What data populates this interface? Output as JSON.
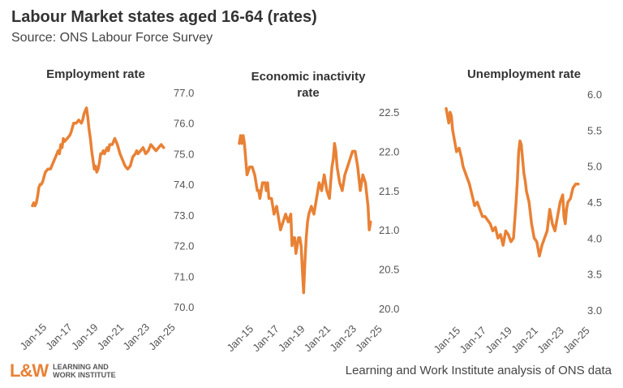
{
  "header": {
    "title": "Labour Market states aged 16-64 (rates)",
    "subtitle": "Source: ONS Labour Force Survey"
  },
  "footer": {
    "logo_mark": "L&W",
    "logo_line1": "LEARNING AND",
    "logo_line2": "WORK INSTITUTE",
    "credit": "Learning and Work Institute analysis of ONS data"
  },
  "colors": {
    "line": "#e98135",
    "text": "#333333"
  },
  "chart_data": [
    {
      "type": "line",
      "title_lines": [
        "Employment rate"
      ],
      "x_ticks": [
        "Jan-15",
        "Jan-17",
        "Jan-19",
        "Jan-21",
        "Jan-23",
        "Jan-25"
      ],
      "y_ticks": [
        "77.0",
        "76.0",
        "75.0",
        "74.0",
        "73.0",
        "72.0",
        "71.0",
        "70.0"
      ],
      "ylim": [
        70,
        77
      ],
      "xlim": [
        2015.0,
        2025.4
      ],
      "grid": false,
      "series": [
        {
          "x": [
            2015.0,
            2015.1,
            2015.2,
            2015.3,
            2015.4,
            2015.5,
            2015.6,
            2015.7,
            2015.8,
            2016.0,
            2016.2,
            2016.4,
            2016.6,
            2016.8,
            2017.0,
            2017.1,
            2017.2,
            2017.3,
            2017.4,
            2017.5,
            2017.7,
            2017.9,
            2018.0,
            2018.2,
            2018.4,
            2018.6,
            2018.8,
            2018.9,
            2019.0,
            2019.1,
            2019.2,
            2019.3,
            2019.4,
            2019.5,
            2019.6,
            2019.7,
            2019.8,
            2019.9,
            2020.0,
            2020.1,
            2020.2,
            2020.3,
            2020.4,
            2020.5,
            2020.6,
            2020.7,
            2020.8,
            2020.9,
            2021.0,
            2021.2,
            2021.4,
            2021.6,
            2021.8,
            2022.0,
            2022.2,
            2022.4,
            2022.6,
            2022.8,
            2023.0,
            2023.1,
            2023.2,
            2023.4,
            2023.6,
            2023.8,
            2024.0,
            2024.2,
            2024.4,
            2024.6,
            2024.8,
            2025.0,
            2025.2
          ],
          "y": [
            73.3,
            73.4,
            73.3,
            73.4,
            73.6,
            73.9,
            74.0,
            74.0,
            74.1,
            74.4,
            74.5,
            74.5,
            74.7,
            74.9,
            75.1,
            75.0,
            75.3,
            75.2,
            75.5,
            75.4,
            75.5,
            75.6,
            75.7,
            76.0,
            76.0,
            76.1,
            76.0,
            76.1,
            76.3,
            76.4,
            76.5,
            76.2,
            75.8,
            75.5,
            75.1,
            74.8,
            74.5,
            74.6,
            74.4,
            74.5,
            74.7,
            75.0,
            75.0,
            75.1,
            75.0,
            75.1,
            75.2,
            75.1,
            75.3,
            75.3,
            75.5,
            75.3,
            75.0,
            74.8,
            74.6,
            74.5,
            74.6,
            74.9,
            75.0,
            75.1,
            75.0,
            75.1,
            75.2,
            75.0,
            75.1,
            75.3,
            75.2,
            75.1,
            75.2,
            75.3,
            75.2
          ]
        }
      ]
    },
    {
      "type": "line",
      "title_lines": [
        "Economic inactivity",
        "rate"
      ],
      "x_ticks": [
        "Jan-15",
        "Jan-17",
        "Jan-19",
        "Jan-21",
        "Jan-23",
        "Jan-25"
      ],
      "y_ticks": [
        "22.5",
        "22.0",
        "21.5",
        "21.0",
        "20.5",
        "20.0"
      ],
      "ylim": [
        20,
        22.5
      ],
      "xlim": [
        2015.0,
        2025.4
      ],
      "grid": false,
      "series": [
        {
          "x": [
            2015.0,
            2015.1,
            2015.2,
            2015.3,
            2015.4,
            2015.5,
            2015.6,
            2015.8,
            2016.0,
            2016.2,
            2016.4,
            2016.5,
            2016.6,
            2016.8,
            2017.0,
            2017.1,
            2017.2,
            2017.3,
            2017.5,
            2017.7,
            2017.9,
            2018.0,
            2018.2,
            2018.4,
            2018.6,
            2018.8,
            2019.0,
            2019.1,
            2019.2,
            2019.3,
            2019.4,
            2019.5,
            2019.6,
            2019.7,
            2019.8,
            2019.9,
            2020.0,
            2020.1,
            2020.2,
            2020.3,
            2020.4,
            2020.6,
            2020.8,
            2021.0,
            2021.2,
            2021.4,
            2021.6,
            2021.8,
            2022.0,
            2022.1,
            2022.2,
            2022.3,
            2022.4,
            2022.5,
            2022.6,
            2022.8,
            2023.0,
            2023.2,
            2023.4,
            2023.6,
            2023.8,
            2024.0,
            2024.2,
            2024.4,
            2024.6,
            2024.8,
            2025.0,
            2025.1,
            2025.2
          ],
          "y": [
            22.1,
            22.2,
            22.1,
            22.2,
            22.1,
            21.9,
            21.7,
            21.8,
            21.8,
            21.7,
            21.5,
            21.5,
            21.4,
            21.6,
            21.6,
            21.5,
            21.6,
            21.4,
            21.4,
            21.2,
            21.3,
            21.2,
            21.0,
            21.1,
            21.2,
            21.1,
            21.2,
            20.8,
            20.9,
            20.9,
            20.7,
            20.8,
            20.9,
            20.9,
            20.8,
            20.5,
            20.2,
            20.6,
            20.9,
            21.1,
            21.2,
            21.3,
            21.2,
            21.4,
            21.6,
            21.5,
            21.7,
            21.5,
            21.4,
            21.6,
            21.8,
            21.9,
            22.1,
            22.0,
            21.8,
            21.6,
            21.5,
            21.7,
            21.8,
            21.9,
            22.0,
            22.0,
            21.8,
            21.5,
            21.7,
            21.6,
            21.3,
            21.0,
            21.1
          ]
        }
      ]
    },
    {
      "type": "line",
      "title_lines": [
        "Unemployment rate"
      ],
      "x_ticks": [
        "Jan-15",
        "Jan-17",
        "Jan-19",
        "Jan-21",
        "Jan-23",
        "Jan-25"
      ],
      "y_ticks": [
        "6.0",
        "5.5",
        "5.0",
        "4.5",
        "4.0",
        "3.5",
        "3.0"
      ],
      "ylim": [
        3,
        6
      ],
      "xlim": [
        2015.0,
        2025.4
      ],
      "grid": false,
      "series": [
        {
          "x": [
            2015.0,
            2015.1,
            2015.2,
            2015.3,
            2015.4,
            2015.5,
            2015.6,
            2015.7,
            2015.8,
            2016.0,
            2016.2,
            2016.3,
            2016.4,
            2016.6,
            2016.8,
            2017.0,
            2017.2,
            2017.4,
            2017.6,
            2017.8,
            2018.0,
            2018.2,
            2018.4,
            2018.6,
            2018.8,
            2019.0,
            2019.2,
            2019.4,
            2019.6,
            2019.8,
            2020.0,
            2020.2,
            2020.4,
            2020.5,
            2020.6,
            2020.7,
            2020.8,
            2020.9,
            2021.0,
            2021.1,
            2021.2,
            2021.4,
            2021.6,
            2021.8,
            2022.0,
            2022.2,
            2022.4,
            2022.6,
            2022.8,
            2023.0,
            2023.2,
            2023.4,
            2023.6,
            2023.8,
            2024.0,
            2024.1,
            2024.2,
            2024.3,
            2024.4,
            2024.6,
            2024.8,
            2025.0,
            2025.2
          ],
          "y": [
            5.8,
            5.7,
            5.6,
            5.75,
            5.7,
            5.5,
            5.4,
            5.3,
            5.2,
            5.25,
            5.1,
            5.0,
            4.95,
            4.85,
            4.75,
            4.6,
            4.45,
            4.5,
            4.4,
            4.3,
            4.3,
            4.25,
            4.2,
            4.1,
            4.15,
            4.0,
            4.05,
            3.9,
            4.1,
            4.05,
            3.95,
            4.0,
            4.5,
            4.8,
            5.2,
            5.35,
            5.3,
            5.1,
            4.9,
            4.8,
            4.65,
            4.5,
            4.2,
            4.0,
            3.95,
            3.75,
            3.9,
            4.0,
            4.1,
            4.4,
            4.2,
            4.1,
            4.3,
            4.5,
            4.6,
            4.3,
            4.2,
            4.4,
            4.5,
            4.55,
            4.7,
            4.75,
            4.75
          ]
        }
      ]
    }
  ]
}
